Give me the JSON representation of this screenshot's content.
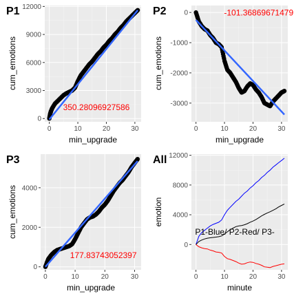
{
  "chart_data": [
    {
      "id": "p1",
      "type": "scatter",
      "tag": "P1",
      "xlabel": "min_upgrade",
      "ylabel": "cum_emotions",
      "xlim": [
        -1.6,
        32.2
      ],
      "ylim": [
        -350,
        12100
      ],
      "xticks": [
        0,
        10,
        20,
        30
      ],
      "yticks": [
        0,
        3000,
        6000,
        9000,
        12000
      ],
      "ytick_labels": [
        "0",
        "3000",
        "6000",
        "9000",
        "12000"
      ],
      "annotation": "350.28096927586",
      "annotation_pos": [
        16.5,
        900
      ],
      "fit": {
        "x": [
          0,
          31
        ],
        "y": [
          -100,
          11600
        ]
      },
      "points": [
        [
          0,
          0
        ],
        [
          0.3,
          500
        ],
        [
          0.6,
          800
        ],
        [
          1,
          1100
        ],
        [
          2,
          1600
        ],
        [
          3,
          1900
        ],
        [
          4,
          2200
        ],
        [
          5,
          2500
        ],
        [
          6,
          2700
        ],
        [
          7,
          2850
        ],
        [
          8,
          3000
        ],
        [
          9,
          3300
        ],
        [
          10,
          4000
        ],
        [
          11,
          4600
        ],
        [
          12,
          5000
        ],
        [
          13,
          5400
        ],
        [
          14,
          5800
        ],
        [
          15,
          6100
        ],
        [
          16,
          6500
        ],
        [
          17,
          6900
        ],
        [
          18,
          7200
        ],
        [
          19,
          7600
        ],
        [
          20,
          7900
        ],
        [
          21,
          8300
        ],
        [
          22,
          8600
        ],
        [
          23,
          9000
        ],
        [
          24,
          9300
        ],
        [
          25,
          9700
        ],
        [
          26,
          10000
        ],
        [
          27,
          10400
        ],
        [
          28,
          10700
        ],
        [
          29,
          11000
        ],
        [
          30,
          11300
        ],
        [
          31,
          11600
        ]
      ]
    },
    {
      "id": "p2",
      "type": "scatter",
      "tag": "P2",
      "xlabel": "min_upgrade",
      "ylabel": "cum_emotions",
      "xlim": [
        -1.6,
        32.2
      ],
      "ylim": [
        -3620,
        230
      ],
      "xticks": [
        0,
        10,
        20,
        30
      ],
      "yticks": [
        0,
        -1000,
        -2000,
        -3000
      ],
      "ytick_labels": [
        "0",
        "-1000",
        "-2000",
        "-3000"
      ],
      "annotation": "-101.36869671479",
      "annotation_pos": [
        22,
        -100
      ],
      "fit": {
        "x": [
          0,
          31
        ],
        "y": [
          -250,
          -3380
        ]
      },
      "points": [
        [
          0,
          0
        ],
        [
          1,
          -300
        ],
        [
          2,
          -450
        ],
        [
          3,
          -550
        ],
        [
          4,
          -600
        ],
        [
          5,
          -750
        ],
        [
          6,
          -850
        ],
        [
          7,
          -1000
        ],
        [
          8,
          -1050
        ],
        [
          9,
          -1150
        ],
        [
          10,
          -1600
        ],
        [
          11,
          -1900
        ],
        [
          12,
          -2000
        ],
        [
          13,
          -2150
        ],
        [
          14,
          -2300
        ],
        [
          15,
          -2500
        ],
        [
          16,
          -2650
        ],
        [
          17,
          -2600
        ],
        [
          18,
          -2450
        ],
        [
          19,
          -2350
        ],
        [
          20,
          -2400
        ],
        [
          21,
          -2550
        ],
        [
          22,
          -2650
        ],
        [
          23,
          -2800
        ],
        [
          24,
          -3000
        ],
        [
          25,
          -3050
        ],
        [
          26,
          -3100
        ],
        [
          27,
          -2950
        ],
        [
          28,
          -2850
        ],
        [
          29,
          -2750
        ],
        [
          30,
          -2650
        ],
        [
          31,
          -2600
        ]
      ]
    },
    {
      "id": "p3",
      "type": "scatter",
      "tag": "P3",
      "xlabel": "min_upgrade",
      "ylabel": "cum_emotions",
      "xlim": [
        -1.6,
        32.2
      ],
      "ylim": [
        -150,
        5700
      ],
      "xticks": [
        0,
        10,
        20,
        30
      ],
      "yticks": [
        0,
        2000,
        4000
      ],
      "ytick_labels": [
        "0",
        "2000",
        "4000"
      ],
      "annotation": "177.83743052397",
      "annotation_pos": [
        19.5,
        450
      ],
      "fit": {
        "x": [
          0,
          31
        ],
        "y": [
          0,
          5350
        ]
      },
      "points": [
        [
          0,
          0
        ],
        [
          0.5,
          200
        ],
        [
          1,
          400
        ],
        [
          2,
          600
        ],
        [
          3,
          750
        ],
        [
          4,
          850
        ],
        [
          5,
          900
        ],
        [
          6,
          950
        ],
        [
          7,
          1000
        ],
        [
          8,
          1050
        ],
        [
          9,
          1150
        ],
        [
          10,
          1400
        ],
        [
          11,
          1700
        ],
        [
          12,
          2000
        ],
        [
          13,
          2200
        ],
        [
          14,
          2400
        ],
        [
          15,
          2500
        ],
        [
          16,
          2550
        ],
        [
          17,
          2650
        ],
        [
          18,
          2800
        ],
        [
          19,
          3000
        ],
        [
          20,
          3150
        ],
        [
          21,
          3350
        ],
        [
          22,
          3600
        ],
        [
          23,
          3850
        ],
        [
          24,
          4050
        ],
        [
          25,
          4250
        ],
        [
          26,
          4400
        ],
        [
          27,
          4600
        ],
        [
          28,
          4800
        ],
        [
          29,
          5050
        ],
        [
          30,
          5250
        ],
        [
          31,
          5450
        ]
      ]
    },
    {
      "id": "all",
      "type": "line",
      "tag": "All",
      "xlabel": "minute",
      "ylabel": "emotion",
      "xlim": [
        -1.6,
        32.2
      ],
      "ylim": [
        -3400,
        12150
      ],
      "xticks": [
        0,
        10,
        20,
        30
      ],
      "yticks": [
        0,
        4000,
        8000,
        12000
      ],
      "ytick_labels": [
        "0",
        "4000",
        "8000",
        "12000"
      ],
      "annotation": "P1-Blue/ P2-Red/ P3-",
      "annotation_pos": [
        -0.3,
        1300
      ],
      "series": [
        {
          "color": "#0000ff",
          "x": [
            0,
            1,
            2,
            3,
            4,
            5,
            6,
            7,
            8,
            9,
            10,
            11,
            12,
            13,
            14,
            15,
            16,
            17,
            18,
            19,
            20,
            21,
            22,
            23,
            24,
            25,
            26,
            27,
            28,
            29,
            30,
            31
          ],
          "y": [
            0,
            1100,
            1600,
            1900,
            2200,
            2500,
            2700,
            2850,
            3000,
            3300,
            4000,
            4600,
            5000,
            5400,
            5800,
            6100,
            6500,
            6900,
            7200,
            7600,
            7900,
            8300,
            8600,
            9000,
            9300,
            9700,
            10000,
            10400,
            10700,
            11000,
            11300,
            11600
          ]
        },
        {
          "color": "#ff0000",
          "x": [
            0,
            1,
            2,
            3,
            4,
            5,
            6,
            7,
            8,
            9,
            10,
            11,
            12,
            13,
            14,
            15,
            16,
            17,
            18,
            19,
            20,
            21,
            22,
            23,
            24,
            25,
            26,
            27,
            28,
            29,
            30,
            31
          ],
          "y": [
            0,
            -300,
            -450,
            -550,
            -600,
            -750,
            -850,
            -1000,
            -1050,
            -1150,
            -1600,
            -1900,
            -2000,
            -2150,
            -2300,
            -2500,
            -2650,
            -2600,
            -2450,
            -2350,
            -2400,
            -2550,
            -2650,
            -2800,
            -3000,
            -3050,
            -3100,
            -2950,
            -2850,
            -2750,
            -2650,
            -2600
          ]
        },
        {
          "color": "#000000",
          "x": [
            0,
            1,
            2,
            3,
            4,
            5,
            6,
            7,
            8,
            9,
            10,
            11,
            12,
            13,
            14,
            15,
            16,
            17,
            18,
            19,
            20,
            21,
            22,
            23,
            24,
            25,
            26,
            27,
            28,
            29,
            30,
            31
          ],
          "y": [
            0,
            400,
            600,
            750,
            850,
            900,
            950,
            1000,
            1050,
            1150,
            1400,
            1700,
            2000,
            2200,
            2400,
            2500,
            2550,
            2650,
            2800,
            3000,
            3150,
            3350,
            3600,
            3850,
            4050,
            4250,
            4400,
            4600,
            4800,
            5050,
            5250,
            5450
          ]
        }
      ]
    }
  ]
}
